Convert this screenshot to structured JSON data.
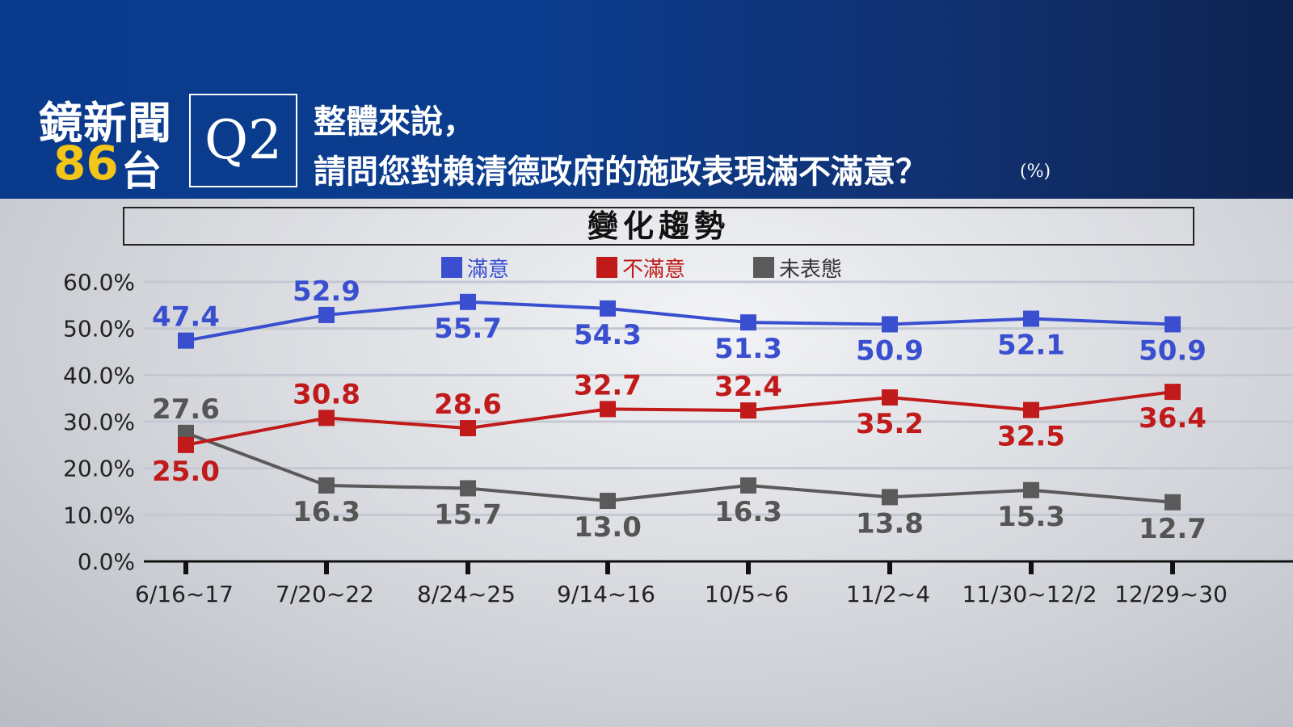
{
  "header": {
    "logo_line1": "鏡新聞",
    "logo_num": "86",
    "logo_suffix": "台",
    "question_code": "Q2",
    "question_line1": "整體來說，",
    "question_line2": "請問您對賴清德政府的施政表現滿不滿意？",
    "unit": "(%)"
  },
  "chart_title": "變化趨勢",
  "colors": {
    "satisfied": "#3a4fcf",
    "dissatisfied": "#c01a1a",
    "no_opinion": "#5a5a5a",
    "header_bg": "#0b3d8f",
    "logo_accent": "#f2c518"
  },
  "chart_data": {
    "type": "line",
    "categories": [
      "6/16~17",
      "7/20~22",
      "8/24~25",
      "9/14~16",
      "10/5~6",
      "11/2~4",
      "11/30~12/2",
      "12/29~30"
    ],
    "series": [
      {
        "name": "滿意",
        "values": [
          47.4,
          52.9,
          55.7,
          54.3,
          51.3,
          50.9,
          52.1,
          50.9
        ]
      },
      {
        "name": "不滿意",
        "values": [
          25.0,
          30.8,
          28.6,
          32.7,
          32.4,
          35.2,
          32.5,
          36.4
        ]
      },
      {
        "name": "未表態",
        "values": [
          27.6,
          16.3,
          15.7,
          13.0,
          16.3,
          13.8,
          15.3,
          12.7
        ]
      }
    ],
    "yticks": [
      "60.0%",
      "50.0%",
      "40.0%",
      "30.0%",
      "20.0%",
      "10.0%",
      "0.0%"
    ],
    "ylim": [
      0,
      60
    ],
    "legend_position": "top-center",
    "grid": true,
    "marker": "square"
  }
}
